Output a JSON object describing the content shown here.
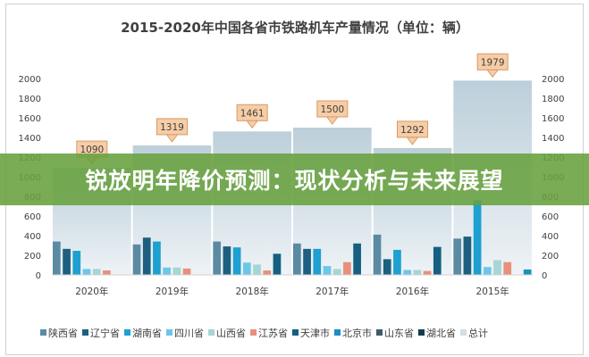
{
  "chart_data": {
    "type": "bar",
    "title": "2015-2020年中国各省市铁路机车产量情况（单位：辆）",
    "categories": [
      "2020年",
      "2019年",
      "2018年",
      "2017年",
      "2016年",
      "2015年"
    ],
    "ylim": [
      0,
      2000
    ],
    "yticks": [
      0,
      200,
      400,
      600,
      800,
      1000,
      1200,
      1400,
      1600,
      1800,
      2000
    ],
    "grid": false,
    "legend_position": "bottom",
    "series": [
      {
        "name": "陕西省",
        "color": "#5b8ba3",
        "values": [
          340,
          310,
          340,
          320,
          410,
          370
        ]
      },
      {
        "name": "辽宁省",
        "color": "#1d5f80",
        "values": [
          265,
          380,
          290,
          265,
          160,
          390
        ]
      },
      {
        "name": "湖南省",
        "color": "#1ea0d0",
        "values": [
          245,
          340,
          280,
          265,
          255,
          760
        ]
      },
      {
        "name": "四川省",
        "color": "#6cc6ea",
        "values": [
          60,
          75,
          125,
          90,
          50,
          80
        ]
      },
      {
        "name": "山西省",
        "color": "#a6d5d5",
        "values": [
          60,
          75,
          105,
          60,
          50,
          150
        ]
      },
      {
        "name": "江苏省",
        "color": "#e8907a",
        "values": [
          45,
          65,
          45,
          130,
          40,
          130
        ]
      },
      {
        "name": "天津市",
        "color": "#156080",
        "values": [
          0,
          0,
          215,
          320,
          285,
          0
        ]
      },
      {
        "name": "北京市",
        "color": "#1a8fc0",
        "values": [
          0,
          0,
          0,
          0,
          0,
          55
        ]
      },
      {
        "name": "山东省",
        "color": "#3d5a6a",
        "values": [
          0,
          0,
          0,
          0,
          0,
          0
        ]
      },
      {
        "name": "湖北省",
        "color": "#153a4e",
        "values": [
          0,
          0,
          0,
          0,
          0,
          0
        ]
      }
    ],
    "total": {
      "name": "总计",
      "color": "#d3dee5",
      "values": [
        1090,
        1319,
        1461,
        1500,
        1292,
        1979
      ]
    }
  },
  "banner": {
    "text": "锐放明年降价预测：现状分析与未来展望",
    "color": "#68a03e"
  }
}
